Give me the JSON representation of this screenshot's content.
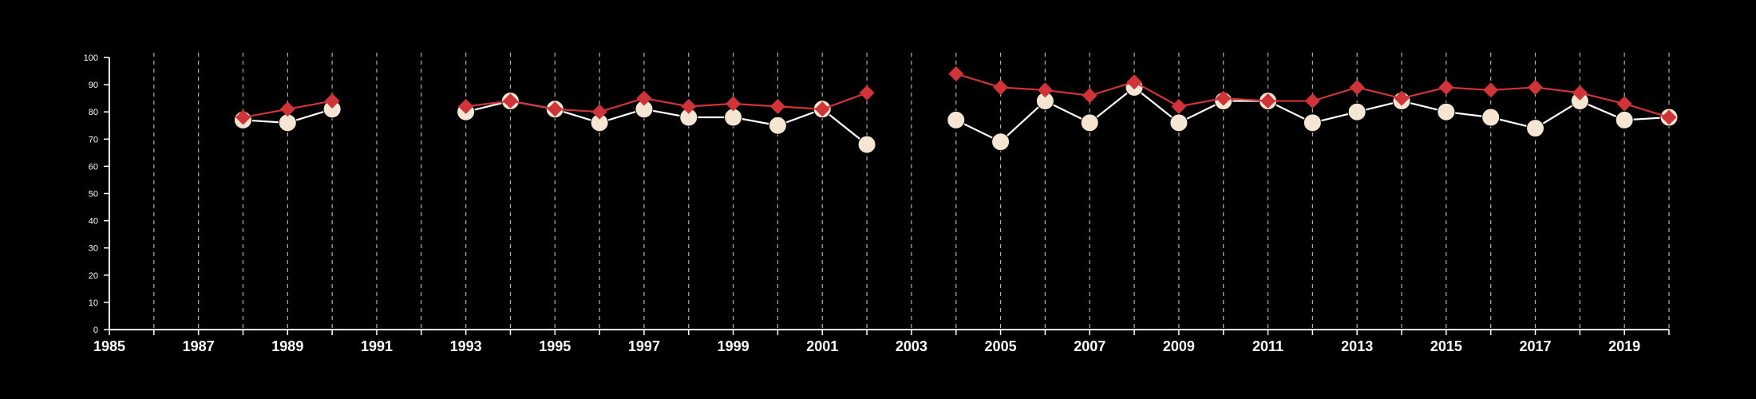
{
  "colors": {
    "background": "#000000",
    "axis": "#ffffff",
    "gridline": "#cfcfcf",
    "series_a_marker": "#f5e6d3",
    "series_a_line": "#ffffff",
    "series_b": "#d13438"
  },
  "chart_data": {
    "type": "line",
    "title": "",
    "xlabel": "",
    "ylabel": "",
    "xlim": [
      1985,
      2020
    ],
    "ylim": [
      0,
      100
    ],
    "x_ticks": [
      1985,
      1987,
      1989,
      1991,
      1993,
      1995,
      1997,
      1999,
      2001,
      2003,
      2005,
      2007,
      2009,
      2011,
      2013,
      2015,
      2017,
      2019
    ],
    "y_ticks": [
      0,
      10,
      20,
      30,
      40,
      50,
      60,
      70,
      80,
      90,
      100
    ],
    "vertical_gridlines": "dashed, every year",
    "legend": "none",
    "series": [
      {
        "marker": "circle",
        "color": "#f5e6d3",
        "points": [
          [
            1988,
            77
          ],
          [
            1989,
            76
          ],
          [
            1990,
            81
          ],
          [
            1993,
            80
          ],
          [
            1994,
            84
          ],
          [
            1995,
            81
          ],
          [
            1996,
            76
          ],
          [
            1997,
            81
          ],
          [
            1998,
            78
          ],
          [
            1999,
            78
          ],
          [
            2000,
            75
          ],
          [
            2001,
            81
          ],
          [
            2002,
            68
          ],
          [
            2004,
            77
          ],
          [
            2005,
            69
          ],
          [
            2006,
            84
          ],
          [
            2007,
            76
          ],
          [
            2008,
            89
          ],
          [
            2009,
            76
          ],
          [
            2010,
            84
          ],
          [
            2011,
            84
          ],
          [
            2012,
            76
          ],
          [
            2013,
            80
          ],
          [
            2014,
            84
          ],
          [
            2015,
            80
          ],
          [
            2016,
            78
          ],
          [
            2017,
            74
          ],
          [
            2018,
            84
          ],
          [
            2019,
            77
          ],
          [
            2020,
            78
          ]
        ]
      },
      {
        "marker": "diamond",
        "color": "#d13438",
        "points": [
          [
            1988,
            78
          ],
          [
            1989,
            81
          ],
          [
            1990,
            84
          ],
          [
            1993,
            82
          ],
          [
            1994,
            84
          ],
          [
            1995,
            81
          ],
          [
            1996,
            80
          ],
          [
            1997,
            85
          ],
          [
            1998,
            82
          ],
          [
            1999,
            83
          ],
          [
            2000,
            82
          ],
          [
            2001,
            81
          ],
          [
            2002,
            87
          ],
          [
            2004,
            94
          ],
          [
            2005,
            89
          ],
          [
            2006,
            88
          ],
          [
            2007,
            86
          ],
          [
            2008,
            91
          ],
          [
            2009,
            82
          ],
          [
            2010,
            85
          ],
          [
            2011,
            84
          ],
          [
            2012,
            84
          ],
          [
            2013,
            89
          ],
          [
            2014,
            85
          ],
          [
            2015,
            89
          ],
          [
            2016,
            88
          ],
          [
            2017,
            89
          ],
          [
            2018,
            87
          ],
          [
            2019,
            83
          ],
          [
            2020,
            78
          ]
        ]
      }
    ]
  }
}
